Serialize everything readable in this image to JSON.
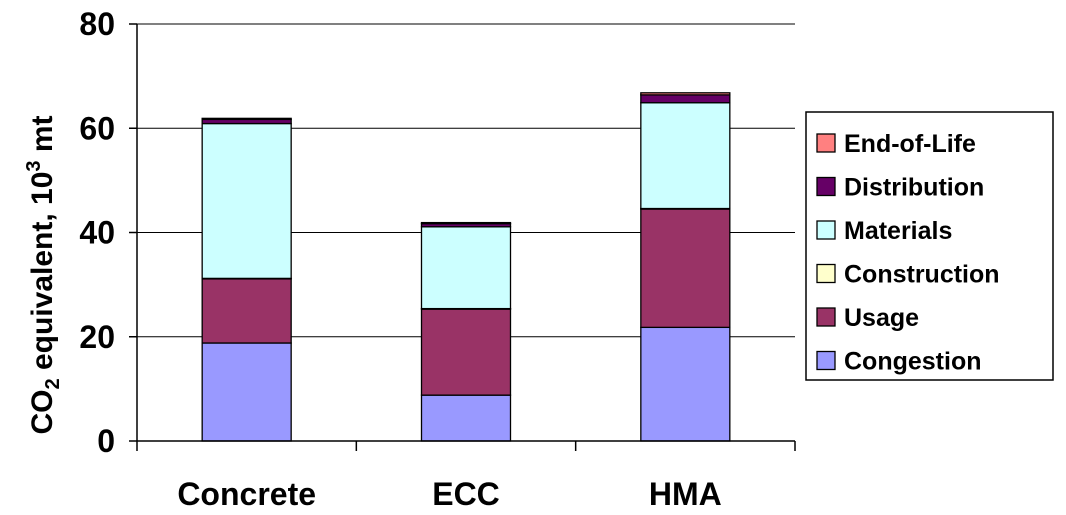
{
  "chart_data": {
    "type": "bar",
    "stacked": true,
    "categories": [
      "Concrete",
      "ECC",
      "HMA"
    ],
    "ylabel_main": "CO",
    "ylabel_sub": "2",
    "ylabel_rest": " equivalent, 10",
    "ylabel_sup": "3",
    "ylabel_unit": " mt",
    "ylim": [
      0,
      80
    ],
    "yticks": [
      "0",
      "20",
      "40",
      "60",
      "80"
    ],
    "ytick_values": [
      0,
      20,
      40,
      60,
      80
    ],
    "grid": true,
    "legend_position": "right",
    "series": [
      {
        "name": "Congestion",
        "color": "#9999ff",
        "values": [
          18.8,
          8.8,
          21.8
        ]
      },
      {
        "name": "Usage",
        "color": "#993366",
        "values": [
          12.3,
          16.5,
          22.7
        ]
      },
      {
        "name": "Construction",
        "color": "#ffffcc",
        "values": [
          0.1,
          0.1,
          0.1
        ]
      },
      {
        "name": "Materials",
        "color": "#ccffff",
        "values": [
          29.7,
          15.7,
          20.3
        ]
      },
      {
        "name": "Distribution",
        "color": "#660066",
        "values": [
          0.8,
          0.6,
          1.5
        ]
      },
      {
        "name": "End-of-Life",
        "color": "#ff8080",
        "values": [
          0.2,
          0.2,
          0.4
        ]
      }
    ]
  }
}
